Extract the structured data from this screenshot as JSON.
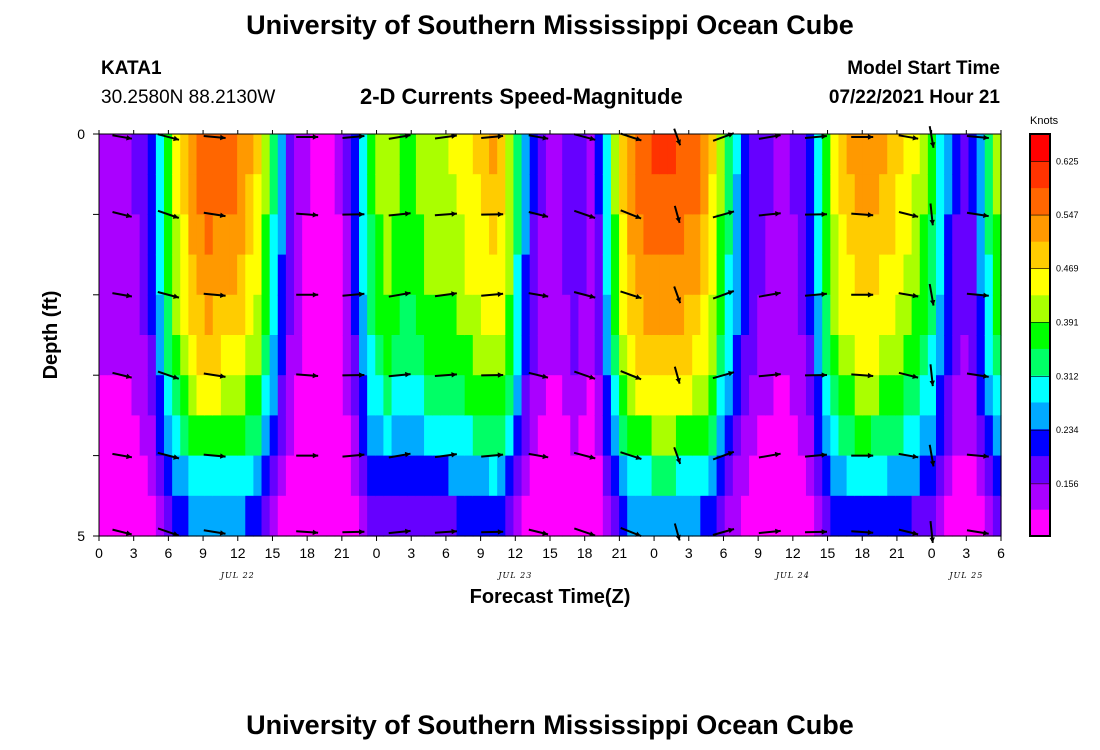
{
  "header": {
    "title_top": "University of Southern Mississippi Ocean Cube",
    "title_bottom": "University of Southern Mississippi Ocean Cube",
    "station_id": "KATA1",
    "station_coords": "30.2580N  88.2130W",
    "subtitle": "2-D Currents Speed-Magnitude",
    "model_start_label": "Model Start Time",
    "model_start_value": "07/22/2021 Hour 21"
  },
  "chart_data": {
    "type": "heatmap",
    "title": "2-D Currents Speed-Magnitude",
    "xlabel": "Forecast Time(Z)",
    "ylabel": "Depth (ft)",
    "xlim": [
      0,
      78
    ],
    "ylim": [
      0,
      5
    ],
    "x_tick_labels": [
      "0",
      "3",
      "6",
      "9",
      "12",
      "15",
      "18",
      "21",
      "0",
      "3",
      "6",
      "9",
      "12",
      "15",
      "18",
      "21",
      "0",
      "3",
      "6",
      "9",
      "12",
      "15",
      "18",
      "21",
      "0",
      "3",
      "6"
    ],
    "y_tick_labels": [
      "0",
      "5"
    ],
    "date_labels": [
      {
        "hour": 12,
        "text": "JUL 22"
      },
      {
        "hour": 36,
        "text": "JUL 23"
      },
      {
        "hour": 60,
        "text": "JUL 24"
      },
      {
        "hour": 75,
        "text": "JUL 25"
      }
    ],
    "colorbar": {
      "label": "Knots",
      "ticks": [
        0.625,
        0.547,
        0.469,
        0.391,
        0.312,
        0.234,
        0.156
      ],
      "range": [
        0.08,
        0.665
      ],
      "colors": [
        "#ff00ff",
        "#aa00ff",
        "#6600ff",
        "#0000ff",
        "#00aaff",
        "#00ffff",
        "#00ff66",
        "#00ff00",
        "#aaff00",
        "#ffff00",
        "#ffcc00",
        "#ff9900",
        "#ff6600",
        "#ff3300",
        "#ff0000"
      ]
    },
    "column_speeds": [
      0.14,
      0.14,
      0.15,
      0.15,
      0.16,
      0.18,
      0.22,
      0.3,
      0.38,
      0.44,
      0.48,
      0.53,
      0.56,
      0.57,
      0.56,
      0.55,
      0.55,
      0.53,
      0.5,
      0.47,
      0.4,
      0.32,
      0.25,
      0.18,
      0.14,
      0.12,
      0.11,
      0.1,
      0.1,
      0.12,
      0.16,
      0.22,
      0.3,
      0.36,
      0.4,
      0.42,
      0.4,
      0.38,
      0.38,
      0.4,
      0.42,
      0.42,
      0.42,
      0.43,
      0.44,
      0.46,
      0.47,
      0.48,
      0.5,
      0.48,
      0.42,
      0.33,
      0.25,
      0.2,
      0.16,
      0.14,
      0.15,
      0.17,
      0.19,
      0.17,
      0.15,
      0.2,
      0.3,
      0.4,
      0.48,
      0.53,
      0.56,
      0.57,
      0.58,
      0.58,
      0.58,
      0.57,
      0.56,
      0.55,
      0.52,
      0.47,
      0.4,
      0.33,
      0.27,
      0.22,
      0.19,
      0.17,
      0.16,
      0.15,
      0.15,
      0.16,
      0.18,
      0.22,
      0.3,
      0.38,
      0.44,
      0.48,
      0.5,
      0.52,
      0.52,
      0.51,
      0.5,
      0.49,
      0.47,
      0.45,
      0.43,
      0.4,
      0.36,
      0.3,
      0.24,
      0.2,
      0.18,
      0.2,
      0.26,
      0.33,
      0.4
    ],
    "depth_factors": [
      1.02,
      1.0,
      0.97,
      0.94,
      0.9,
      0.85,
      0.78,
      0.68,
      0.55,
      0.45
    ],
    "vector_times": [
      2,
      6,
      10,
      18,
      22,
      26,
      30,
      34,
      38,
      42,
      46,
      50,
      54,
      58,
      62,
      66,
      70,
      72,
      76
    ],
    "vector_depths": [
      0,
      1,
      2,
      3,
      4,
      5
    ],
    "vector_angles": [
      10,
      15,
      5,
      0,
      -5,
      -10,
      -8,
      -5,
      10,
      15,
      18,
      70,
      -20,
      -10,
      -5,
      0,
      10,
      80,
      5
    ],
    "vector_lengths": [
      0.9,
      1,
      1,
      1,
      1,
      1,
      1,
      1,
      0.9,
      1,
      1,
      0.8,
      1,
      1,
      1,
      1,
      0.9,
      1,
      1
    ]
  }
}
